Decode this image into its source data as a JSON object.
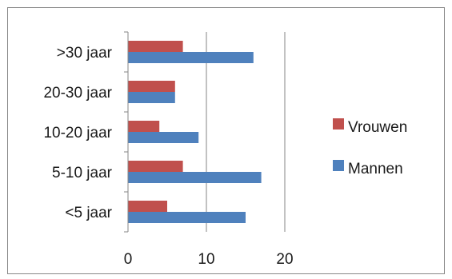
{
  "chart_data": {
    "type": "bar",
    "orientation": "horizontal",
    "categories": [
      "<5 jaar",
      "5-10 jaar",
      "10-20 jaar",
      "20-30 jaar",
      ">30 jaar"
    ],
    "series": [
      {
        "name": "Mannen",
        "color": "#4f81bd",
        "values": [
          15,
          17,
          9,
          6,
          16
        ]
      },
      {
        "name": "Vrouwen",
        "color": "#c0504d",
        "values": [
          5,
          7,
          4,
          6,
          7
        ]
      }
    ],
    "xlim": [
      0,
      20
    ],
    "x_ticks": [
      0,
      10,
      20
    ],
    "grid": "vertical",
    "legend": {
      "placement": "right",
      "entries": [
        "Vrouwen",
        "Mannen"
      ]
    },
    "title": "",
    "xlabel": "",
    "ylabel": ""
  }
}
